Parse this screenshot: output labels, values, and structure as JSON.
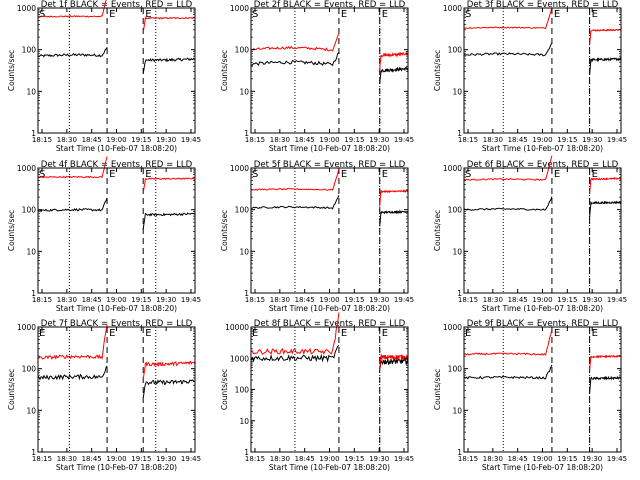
{
  "figure": {
    "x_axis_title": "Start Time (10-Feb-07 18:08:20)",
    "y_axis_title": "Counts/sec",
    "time_ticks": [
      "18:15",
      "18:30",
      "18:45",
      "19:00",
      "19:15",
      "19:30",
      "19:45"
    ],
    "markers": {
      "start": "S",
      "end": "E"
    },
    "colors": {
      "events": "#000000",
      "lld": "#ff0000"
    }
  },
  "chart_data": [
    {
      "type": "line",
      "title": "Det 1f BLACK = Events, RED = LLD",
      "xlabel": "Start Time (10-Feb-07 18:08:20)",
      "ylabel": "Counts/sec",
      "log_y": true,
      "ylim": [
        1,
        1000
      ],
      "yticks": [
        "1",
        "10",
        "100",
        "1000"
      ],
      "xlim": [
        0,
        100
      ],
      "start_label": "S",
      "end_label": "E",
      "dotted_x": [
        20,
        75
      ],
      "dashed_x": [
        44,
        67
      ],
      "series": [
        {
          "name": "Events",
          "color": "#000000",
          "baseline": 70,
          "end_level": 60,
          "drift": 0.2,
          "noise": 0.06,
          "pre_spike": 0.1
        },
        {
          "name": "LLD",
          "color": "#ff0000",
          "baseline": 620,
          "end_level": 580,
          "drift": 0.05,
          "noise": 0.03,
          "pre_spike": 0.25
        }
      ]
    },
    {
      "type": "line",
      "title": "Det 2f BLACK = Events, RED = LLD",
      "xlabel": "Start Time (10-Feb-07 18:08:20)",
      "ylabel": "Counts/sec",
      "log_y": true,
      "ylim": [
        1,
        1000
      ],
      "yticks": [
        "1",
        "10",
        "100",
        "1000"
      ],
      "xlim": [
        0,
        100
      ],
      "start_label": "S",
      "end_label": "E",
      "dotted_x": [
        28,
        82
      ],
      "dashed_x": [
        56,
        82
      ],
      "series": [
        {
          "name": "Events",
          "color": "#000000",
          "baseline": 45,
          "end_level": 35,
          "drift": 0.3,
          "noise": 0.08,
          "pre_spike": 0.15
        },
        {
          "name": "LLD",
          "color": "#ff0000",
          "baseline": 100,
          "end_level": 80,
          "drift": 0.3,
          "noise": 0.06,
          "pre_spike": 0.2
        }
      ]
    },
    {
      "type": "line",
      "title": "Det 3f BLACK = Events, RED = LLD",
      "xlabel": "Start Time (10-Feb-07 18:08:20)",
      "ylabel": "Counts/sec",
      "log_y": true,
      "ylim": [
        1,
        1000
      ],
      "yticks": [
        "1",
        "10",
        "100",
        "1000"
      ],
      "xlim": [
        0,
        100
      ],
      "start_label": "S",
      "end_label": "E",
      "dotted_x": [
        25,
        80
      ],
      "dashed_x": [
        56,
        80
      ],
      "series": [
        {
          "name": "Events",
          "color": "#000000",
          "baseline": 75,
          "end_level": 60,
          "drift": 0.15,
          "noise": 0.05,
          "pre_spike": 0.15
        },
        {
          "name": "LLD",
          "color": "#ff0000",
          "baseline": 330,
          "end_level": 300,
          "drift": 0.1,
          "noise": 0.03,
          "pre_spike": 0.25
        }
      ]
    },
    {
      "type": "line",
      "title": "Det 4f BLACK = Events, RED = LLD",
      "xlabel": "Start Time (10-Feb-07 18:08:20)",
      "ylabel": "Counts/sec",
      "log_y": true,
      "ylim": [
        1,
        1000
      ],
      "yticks": [
        "1",
        "10",
        "100",
        "1000"
      ],
      "xlim": [
        0,
        100
      ],
      "start_label": "S",
      "end_label": "E",
      "dotted_x": [
        20,
        75
      ],
      "dashed_x": [
        44,
        67
      ],
      "series": [
        {
          "name": "Events",
          "color": "#000000",
          "baseline": 95,
          "end_level": 80,
          "drift": 0.15,
          "noise": 0.05,
          "pre_spike": 0.15
        },
        {
          "name": "LLD",
          "color": "#ff0000",
          "baseline": 600,
          "end_level": 560,
          "drift": 0.05,
          "noise": 0.03,
          "pre_spike": 0.25
        }
      ]
    },
    {
      "type": "line",
      "title": "Det 5f BLACK = Events, RED = LLD",
      "xlabel": "Start Time (10-Feb-07 18:08:20)",
      "ylabel": "Counts/sec",
      "log_y": true,
      "ylim": [
        1,
        1000
      ],
      "yticks": [
        "1",
        "10",
        "100",
        "1000"
      ],
      "xlim": [
        0,
        100
      ],
      "start_label": "S",
      "end_label": "E",
      "dotted_x": [
        28,
        82
      ],
      "dashed_x": [
        56,
        82
      ],
      "series": [
        {
          "name": "Events",
          "color": "#000000",
          "baseline": 110,
          "end_level": 90,
          "drift": 0.15,
          "noise": 0.04,
          "pre_spike": 0.15
        },
        {
          "name": "LLD",
          "color": "#ff0000",
          "baseline": 300,
          "end_level": 280,
          "drift": 0.1,
          "noise": 0.03,
          "pre_spike": 0.25
        }
      ]
    },
    {
      "type": "line",
      "title": "Det 6f BLACK = Events, RED = LLD",
      "xlabel": "Start Time (10-Feb-07 18:08:20)",
      "ylabel": "Counts/sec",
      "log_y": true,
      "ylim": [
        1,
        1000
      ],
      "yticks": [
        "1",
        "10",
        "100",
        "1000"
      ],
      "xlim": [
        0,
        100
      ],
      "start_label": "S",
      "end_label": "E",
      "dotted_x": [
        25,
        80
      ],
      "dashed_x": [
        56,
        80
      ],
      "series": [
        {
          "name": "Events",
          "color": "#000000",
          "baseline": 100,
          "end_level": 150,
          "drift": 0.1,
          "noise": 0.04,
          "pre_spike": 0.15
        },
        {
          "name": "LLD",
          "color": "#ff0000",
          "baseline": 520,
          "end_level": 560,
          "drift": 0.1,
          "noise": 0.03,
          "pre_spike": 0.3
        }
      ]
    },
    {
      "type": "line",
      "title": "Det 7f BLACK = Events, RED = LLD",
      "xlabel": "Start Time (10-Feb-07 18:08:20)",
      "ylabel": "Counts/sec",
      "log_y": true,
      "ylim": [
        1,
        1000
      ],
      "yticks": [
        "1",
        "10",
        "100",
        "1000"
      ],
      "xlim": [
        0,
        100
      ],
      "start_label": "E",
      "end_label": "E",
      "dotted_x": [
        20,
        75
      ],
      "dashed_x": [
        44,
        67
      ],
      "series": [
        {
          "name": "Events",
          "color": "#000000",
          "baseline": 60,
          "end_level": 50,
          "drift": 0.2,
          "noise": 0.1,
          "pre_spike": 0.15
        },
        {
          "name": "LLD",
          "color": "#ff0000",
          "baseline": 180,
          "end_level": 140,
          "drift": 0.25,
          "noise": 0.08,
          "pre_spike": 0.4
        }
      ]
    },
    {
      "type": "line",
      "title": "Det 8f BLACK = Events, RED = LLD",
      "xlabel": "Start Time (10-Feb-07 18:08:20)",
      "ylabel": "Counts/sec",
      "log_y": true,
      "ylim": [
        1,
        10000
      ],
      "yticks": [
        "1",
        "10",
        "100",
        "1000",
        "10000"
      ],
      "xlim": [
        0,
        100
      ],
      "start_label": "E",
      "end_label": "E",
      "dotted_x": [
        28,
        82
      ],
      "dashed_x": [
        56,
        82
      ],
      "series": [
        {
          "name": "Events",
          "color": "#000000",
          "baseline": 1000,
          "end_level": 800,
          "drift": 0.05,
          "noise": 0.18,
          "pre_spike": 0.2
        },
        {
          "name": "LLD",
          "color": "#ff0000",
          "baseline": 1600,
          "end_level": 1100,
          "drift": 0.1,
          "noise": 0.16,
          "pre_spike": 0.6
        }
      ]
    },
    {
      "type": "line",
      "title": "Det 9f BLACK = Events, RED = LLD",
      "xlabel": "Start Time (10-Feb-07 18:08:20)",
      "ylabel": "Counts/sec",
      "log_y": true,
      "ylim": [
        1,
        1000
      ],
      "yticks": [
        "1",
        "10",
        "100",
        "1000"
      ],
      "xlim": [
        0,
        100
      ],
      "start_label": "E",
      "end_label": "E",
      "dotted_x": [
        25,
        80
      ],
      "dashed_x": [
        56,
        80
      ],
      "series": [
        {
          "name": "Events",
          "color": "#000000",
          "baseline": 60,
          "end_level": 60,
          "drift": 0.1,
          "noise": 0.05,
          "pre_spike": 0.15
        },
        {
          "name": "LLD",
          "color": "#ff0000",
          "baseline": 220,
          "end_level": 200,
          "drift": 0.1,
          "noise": 0.04,
          "pre_spike": 0.3
        }
      ]
    }
  ]
}
